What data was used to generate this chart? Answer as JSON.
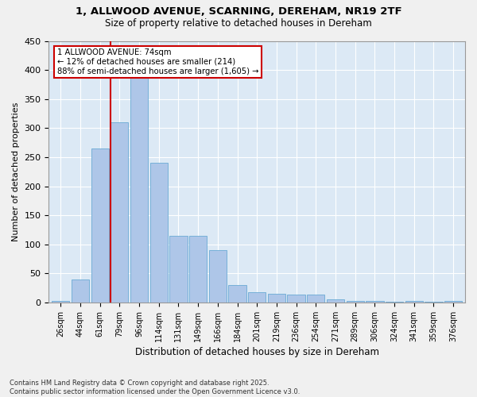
{
  "title": "1, ALLWOOD AVENUE, SCARNING, DEREHAM, NR19 2TF",
  "subtitle": "Size of property relative to detached houses in Dereham",
  "xlabel": "Distribution of detached houses by size in Dereham",
  "ylabel": "Number of detached properties",
  "categories": [
    "26sqm",
    "44sqm",
    "61sqm",
    "79sqm",
    "96sqm",
    "114sqm",
    "131sqm",
    "149sqm",
    "166sqm",
    "184sqm",
    "201sqm",
    "219sqm",
    "236sqm",
    "254sqm",
    "271sqm",
    "289sqm",
    "306sqm",
    "324sqm",
    "341sqm",
    "359sqm",
    "376sqm"
  ],
  "values": [
    3,
    40,
    265,
    310,
    390,
    240,
    115,
    115,
    90,
    30,
    18,
    15,
    13,
    13,
    5,
    3,
    3,
    1,
    3,
    1,
    3
  ],
  "bar_color": "#aec6e8",
  "bar_edge_color": "#6aaad4",
  "background_color": "#dce9f5",
  "grid_color": "#ffffff",
  "property_label": "1 ALLWOOD AVENUE: 74sqm",
  "pct_smaller": "12% of detached houses are smaller (214)",
  "pct_larger": "88% of semi-detached houses are larger (1,605)",
  "vline_color": "#cc0000",
  "annotation_border_color": "#cc0000",
  "ylim": [
    0,
    450
  ],
  "yticks": [
    0,
    50,
    100,
    150,
    200,
    250,
    300,
    350,
    400,
    450
  ],
  "footnote": "Contains HM Land Registry data © Crown copyright and database right 2025.\nContains public sector information licensed under the Open Government Licence v3.0.",
  "fig_bg": "#f0f0f0"
}
